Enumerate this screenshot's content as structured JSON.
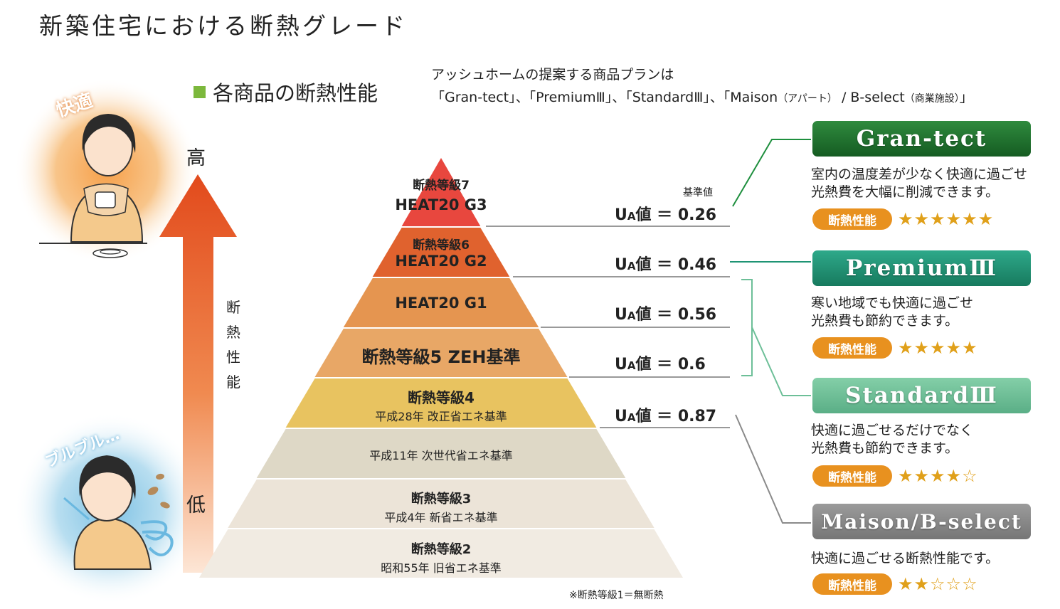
{
  "title": "新築住宅における断熱グレード",
  "section_heading": "各商品の断熱性能",
  "intro": {
    "line1": "アッシュホームの提案する商品プランは",
    "line2_a": "「Gran-tect」、「PremiumⅢ」、「StandardⅢ」、「Maison",
    "line2_b": "（アパート）",
    "line2_c": " / B-select",
    "line2_d": "（商業施設）",
    "line2_e": "」"
  },
  "axis": {
    "high": "高",
    "low": "低",
    "label_chars": [
      "断",
      "熱",
      "性",
      "能"
    ]
  },
  "moods": {
    "comfortable": "快適",
    "shivering": "ブルブル…"
  },
  "pyramid": [
    {
      "grade": "断熱等級7",
      "standard": "HEAT20 G3",
      "color": "#e8473e"
    },
    {
      "grade": "断熱等級6",
      "standard": "HEAT20 G2",
      "color": "#e0622e"
    },
    {
      "grade": "",
      "standard": "HEAT20 G1",
      "color": "#e59550"
    },
    {
      "grade": "断熱等級5 ZEH基準",
      "standard": "",
      "color": "#e8a766"
    },
    {
      "grade": "断熱等級4",
      "standard": "平成28年 改正省エネ基準",
      "color": "#e8c360"
    },
    {
      "grade": "",
      "standard": "平成11年 次世代省エネ基準",
      "color": "#ded8c6"
    },
    {
      "grade": "断熱等級3",
      "standard": "平成4年 新省エネ基準",
      "color": "#ece4d8"
    },
    {
      "grade": "断熱等級2",
      "standard": "昭和55年 旧省エネ基準",
      "color": "#f1ebe2"
    }
  ],
  "ua": {
    "standard_label": "基準値",
    "prefix": "U",
    "sub": "A",
    "suffix": "値 ＝",
    "values": [
      "0.26",
      "0.46",
      "0.56",
      "0.6",
      "0.87"
    ]
  },
  "products": [
    {
      "name": "Gran-tect",
      "desc1": "室内の温度差が少なく快適に過ごせ",
      "desc2": "光熱費を大幅に削減できます。",
      "badge": "断熱性能",
      "stars": "★★★★★★",
      "color": "#1e6b2c"
    },
    {
      "name": "PremiumⅢ",
      "desc1": "寒い地域でも快適に過ごせ",
      "desc2": "光熱費も節約できます。",
      "badge": "断熱性能",
      "stars": "★★★★★",
      "color": "#1f9474"
    },
    {
      "name": "StandardⅢ",
      "desc1": "快適に過ごせるだけでなく",
      "desc2": "光熱費も節約できます。",
      "badge": "断熱性能",
      "stars": "★★★★☆",
      "color": "#6dbf98"
    },
    {
      "name": "Maison/B-select",
      "desc1": "快適に過ごせる断熱性能です。",
      "desc2": "",
      "badge": "断熱性能",
      "stars": "★★☆☆☆",
      "color": "#8a8a8a"
    }
  ],
  "footnote": "※断熱等級1＝無断熱"
}
